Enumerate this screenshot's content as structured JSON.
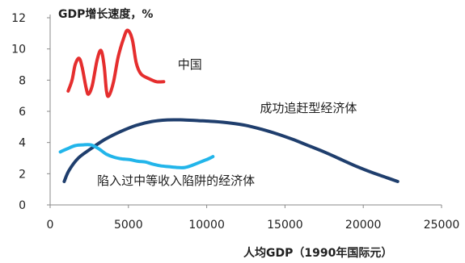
{
  "chart_data": {
    "type": "line",
    "title": "GDP增长速度，%",
    "xlabel": "人均GDP（1990年国际元）",
    "ylabel": "",
    "xlim": [
      0,
      25000
    ],
    "ylim": [
      0,
      12
    ],
    "x_ticks": [
      0,
      5000,
      10000,
      15000,
      20000,
      25000
    ],
    "y_ticks": [
      0,
      2,
      4,
      6,
      8,
      10,
      12
    ],
    "grid": false,
    "series": [
      {
        "name": "中国",
        "color": "#e52e2e",
        "points": [
          [
            1150,
            7.3
          ],
          [
            1400,
            8.0
          ],
          [
            1600,
            9.0
          ],
          [
            1850,
            9.4
          ],
          [
            2050,
            8.8
          ],
          [
            2300,
            7.5
          ],
          [
            2450,
            7.1
          ],
          [
            2700,
            7.7
          ],
          [
            3000,
            9.3
          ],
          [
            3250,
            9.9
          ],
          [
            3450,
            8.9
          ],
          [
            3600,
            7.3
          ],
          [
            3750,
            7.0
          ],
          [
            4050,
            7.9
          ],
          [
            4350,
            9.5
          ],
          [
            4700,
            10.7
          ],
          [
            4950,
            11.2
          ],
          [
            5250,
            10.6
          ],
          [
            5500,
            9.1
          ],
          [
            5800,
            8.4
          ],
          [
            6300,
            8.1
          ],
          [
            6800,
            7.9
          ],
          [
            7250,
            7.9
          ]
        ]
      },
      {
        "name": "成功追赶型经济体",
        "color": "#1f3e6d",
        "points": [
          [
            900,
            1.5
          ],
          [
            1200,
            2.2
          ],
          [
            1800,
            3.0
          ],
          [
            2600,
            3.6
          ],
          [
            3500,
            4.2
          ],
          [
            4500,
            4.7
          ],
          [
            5500,
            5.1
          ],
          [
            6500,
            5.35
          ],
          [
            7500,
            5.45
          ],
          [
            8500,
            5.45
          ],
          [
            9500,
            5.4
          ],
          [
            10500,
            5.35
          ],
          [
            11500,
            5.25
          ],
          [
            12500,
            5.1
          ],
          [
            13500,
            4.85
          ],
          [
            14500,
            4.55
          ],
          [
            15500,
            4.2
          ],
          [
            16500,
            3.8
          ],
          [
            17500,
            3.4
          ],
          [
            18500,
            2.95
          ],
          [
            19500,
            2.5
          ],
          [
            20500,
            2.1
          ],
          [
            21500,
            1.75
          ],
          [
            22200,
            1.5
          ]
        ]
      },
      {
        "name": "陷入过中等收入陷阱的经济体",
        "color": "#22b5ea",
        "points": [
          [
            650,
            3.4
          ],
          [
            1100,
            3.6
          ],
          [
            1600,
            3.8
          ],
          [
            2100,
            3.85
          ],
          [
            2600,
            3.85
          ],
          [
            3100,
            3.6
          ],
          [
            3600,
            3.25
          ],
          [
            4100,
            3.05
          ],
          [
            4600,
            2.95
          ],
          [
            5100,
            2.9
          ],
          [
            5600,
            2.8
          ],
          [
            6100,
            2.75
          ],
          [
            6600,
            2.6
          ],
          [
            7100,
            2.5
          ],
          [
            7600,
            2.45
          ],
          [
            8100,
            2.4
          ],
          [
            8600,
            2.4
          ],
          [
            9100,
            2.55
          ],
          [
            9600,
            2.75
          ],
          [
            10100,
            2.95
          ],
          [
            10400,
            3.1
          ]
        ]
      }
    ]
  }
}
